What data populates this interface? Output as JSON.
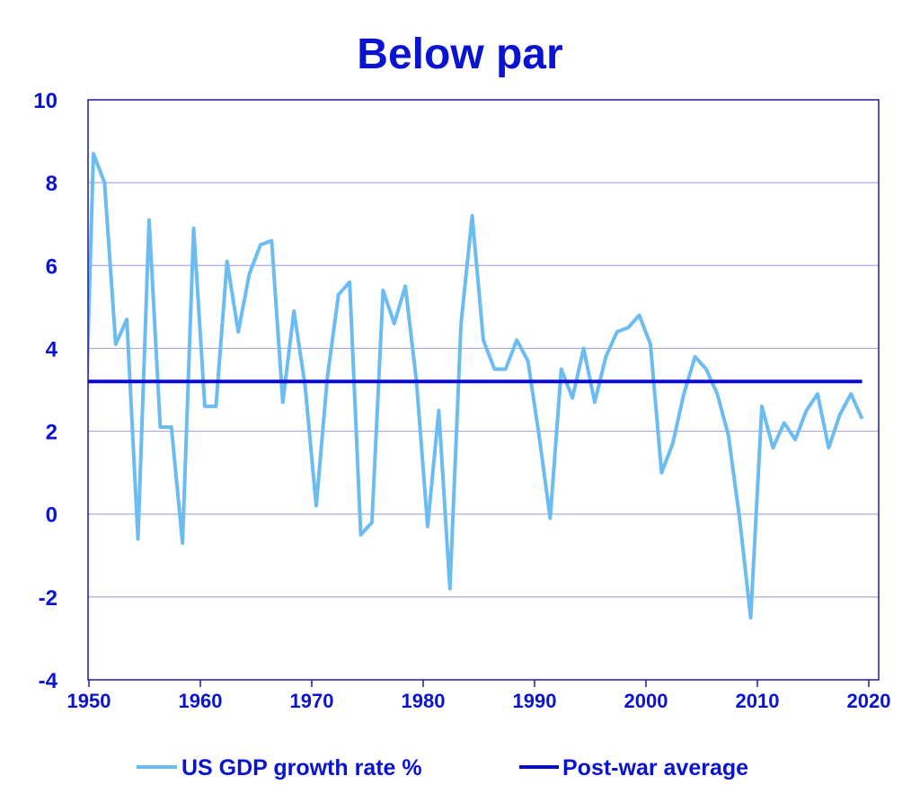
{
  "chart_data": {
    "type": "line",
    "title": "Below par",
    "xlabel": "",
    "ylabel": "",
    "xlim": [
      1950,
      2020
    ],
    "ylim": [
      -4,
      10
    ],
    "x_ticks": [
      1950,
      1960,
      1970,
      1980,
      1990,
      2000,
      2010,
      2020
    ],
    "y_ticks": [
      -4,
      -2,
      0,
      2,
      4,
      6,
      8,
      10
    ],
    "grid": "horizontal",
    "legend_position": "bottom",
    "series": [
      {
        "name": "US GDP growth rate %",
        "color": "#6bbcf2",
        "x": [
          1949,
          1950,
          1951,
          1952,
          1953,
          1954,
          1955,
          1956,
          1957,
          1958,
          1959,
          1960,
          1961,
          1962,
          1963,
          1964,
          1965,
          1966,
          1967,
          1968,
          1969,
          1970,
          1971,
          1972,
          1973,
          1974,
          1975,
          1976,
          1977,
          1978,
          1979,
          1980,
          1981,
          1982,
          1983,
          1984,
          1985,
          1986,
          1987,
          1988,
          1989,
          1990,
          1991,
          1992,
          1993,
          1994,
          1995,
          1996,
          1997,
          1998,
          1999,
          2000,
          2001,
          2002,
          2003,
          2004,
          2005,
          2006,
          2007,
          2008,
          2009,
          2010,
          2011,
          2012,
          2013,
          2014,
          2015,
          2016,
          2017,
          2018,
          2019
        ],
        "values": [
          -0.6,
          8.7,
          8.0,
          4.1,
          4.7,
          -0.6,
          7.1,
          2.1,
          2.1,
          -0.7,
          6.9,
          2.6,
          2.6,
          6.1,
          4.4,
          5.8,
          6.5,
          6.6,
          2.7,
          4.9,
          3.1,
          0.2,
          3.3,
          5.3,
          5.6,
          -0.5,
          -0.2,
          5.4,
          4.6,
          5.5,
          3.2,
          -0.3,
          2.5,
          -1.8,
          4.6,
          7.2,
          4.2,
          3.5,
          3.5,
          4.2,
          3.7,
          1.9,
          -0.1,
          3.5,
          2.8,
          4.0,
          2.7,
          3.8,
          4.4,
          4.5,
          4.8,
          4.1,
          1.0,
          1.7,
          2.9,
          3.8,
          3.5,
          2.9,
          1.9,
          -0.1,
          -2.5,
          2.6,
          1.6,
          2.2,
          1.8,
          2.5,
          2.9,
          1.6,
          2.4,
          2.9,
          2.3
        ]
      },
      {
        "name": "Post-war average",
        "color": "#0a0ad0",
        "x": [
          1950,
          2019
        ],
        "values": [
          3.2,
          3.2
        ]
      }
    ]
  }
}
